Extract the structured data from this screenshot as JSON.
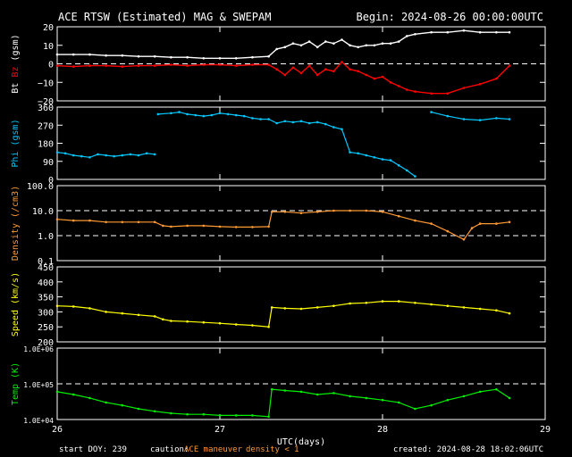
{
  "header": {
    "title": "ACE RTSW (Estimated) MAG & SWEPAM",
    "begin": "Begin: 2024-08-26 00:00:00UTC"
  },
  "footer": {
    "start_doy": "start DOY: 239",
    "caution_label": "caution:",
    "maneuver": "ACE maneuver",
    "density_note": "density < 1",
    "created": "created: 2024-08-28 18:02:06UTC"
  },
  "colors": {
    "bt": "#ffffff",
    "bz": "#ff0000",
    "phi": "#00c8ff",
    "density": "#ff9933",
    "speed": "#ffff00",
    "temp": "#00ee00",
    "axes": "#ffffff",
    "maneuver": "#ff9933"
  },
  "chart_data": [
    {
      "type": "line",
      "ylabel": "Bt  Bz  (gsm)",
      "ylabel_parts": [
        "Bt",
        "Bz",
        "(gsm)"
      ],
      "xlim": [
        "2024-08-26T00:00",
        "2024-08-29T00:00"
      ],
      "ylim": [
        -20,
        20
      ],
      "yticks": [
        20,
        10,
        0,
        -10,
        -20
      ],
      "ytick_labels": [
        "20",
        "10",
        "0",
        "−10",
        "−20"
      ],
      "dashed_y": [
        0
      ],
      "series": [
        {
          "name": "Bt",
          "color": "#ffffff",
          "x": [
            26.0,
            26.1,
            26.2,
            26.3,
            26.4,
            26.5,
            26.6,
            26.7,
            26.8,
            26.9,
            27.0,
            27.1,
            27.2,
            27.3,
            27.35,
            27.4,
            27.45,
            27.5,
            27.55,
            27.6,
            27.65,
            27.7,
            27.75,
            27.8,
            27.85,
            27.9,
            27.95,
            28.0,
            28.05,
            28.1,
            28.15,
            28.2,
            28.3,
            28.4,
            28.5,
            28.6,
            28.7,
            28.78
          ],
          "y": [
            5,
            5,
            5,
            4.5,
            4.5,
            4,
            4,
            3.5,
            3.5,
            3,
            3,
            3,
            3.5,
            4,
            8,
            9,
            11,
            10,
            12,
            9,
            12,
            11,
            13,
            10,
            9,
            10,
            10,
            11,
            11,
            12,
            15,
            16,
            17,
            17,
            18,
            17,
            17,
            17
          ]
        },
        {
          "name": "Bz",
          "color": "#ff0000",
          "x": [
            26.0,
            26.1,
            26.2,
            26.3,
            26.4,
            26.5,
            26.6,
            26.7,
            26.8,
            26.9,
            27.0,
            27.1,
            27.2,
            27.3,
            27.35,
            27.4,
            27.45,
            27.5,
            27.55,
            27.6,
            27.65,
            27.7,
            27.75,
            27.8,
            27.85,
            27.9,
            27.95,
            28.0,
            28.05,
            28.1,
            28.15,
            28.2,
            28.3,
            28.4,
            28.5,
            28.6,
            28.7,
            28.78
          ],
          "y": [
            -1,
            -1.5,
            -1,
            -1,
            -1.5,
            -1,
            -1,
            -0.5,
            -1,
            -0.5,
            -0.5,
            -1,
            -0.5,
            -0.5,
            -3,
            -6,
            -2,
            -5,
            -1,
            -6,
            -3,
            -4,
            1,
            -3,
            -4,
            -6,
            -8,
            -7,
            -10,
            -12,
            -14,
            -15,
            -16,
            -16,
            -13,
            -11,
            -8,
            -1
          ]
        }
      ]
    },
    {
      "type": "scatter",
      "ylabel": "Phi  (gsm)",
      "ylim": [
        0,
        360
      ],
      "yticks": [
        360,
        270,
        180,
        90,
        0
      ],
      "ytick_labels": [
        "360",
        "270",
        "180",
        "90",
        "0"
      ],
      "series": [
        {
          "name": "Phi",
          "color": "#00c8ff",
          "x": [
            26.0,
            26.05,
            26.1,
            26.15,
            26.2,
            26.25,
            26.3,
            26.35,
            26.4,
            26.45,
            26.5,
            26.55,
            26.6,
            26.62,
            26.7,
            26.75,
            26.8,
            26.85,
            26.9,
            26.95,
            27.0,
            27.05,
            27.1,
            27.15,
            27.2,
            27.25,
            27.3,
            27.35,
            27.4,
            27.45,
            27.5,
            27.55,
            27.6,
            27.65,
            27.7,
            27.75,
            27.8,
            27.85,
            27.9,
            27.95,
            28.0,
            28.05,
            28.1,
            28.15,
            28.2,
            28.3,
            28.4,
            28.5,
            28.6,
            28.7,
            28.78
          ],
          "y": [
            135,
            130,
            120,
            115,
            110,
            125,
            120,
            115,
            120,
            125,
            120,
            130,
            125,
            325,
            330,
            335,
            325,
            320,
            315,
            320,
            330,
            325,
            320,
            315,
            305,
            300,
            300,
            280,
            290,
            285,
            290,
            280,
            285,
            275,
            260,
            250,
            135,
            130,
            120,
            110,
            100,
            95,
            70,
            45,
            15,
            335,
            315,
            300,
            295,
            305,
            300
          ]
        }
      ]
    },
    {
      "type": "scatter",
      "ylabel": "Density  (/cm3)",
      "scale": "log",
      "ylim": [
        0.1,
        100
      ],
      "yticks": [
        100,
        10,
        1,
        0.1
      ],
      "ytick_labels": [
        "100.0",
        "10.0",
        "1.0",
        "0.1"
      ],
      "dashed_y": [
        10,
        1
      ],
      "series": [
        {
          "name": "Density",
          "color": "#ff9933",
          "x": [
            26.0,
            26.1,
            26.2,
            26.3,
            26.4,
            26.5,
            26.6,
            26.65,
            26.7,
            26.8,
            26.9,
            27.0,
            27.1,
            27.2,
            27.3,
            27.32,
            27.4,
            27.5,
            27.6,
            27.7,
            27.8,
            27.9,
            28.0,
            28.1,
            28.2,
            28.3,
            28.4,
            28.5,
            28.55,
            28.6,
            28.7,
            28.78
          ],
          "y": [
            4.5,
            4,
            4,
            3.5,
            3.5,
            3.5,
            3.5,
            2.5,
            2.3,
            2.5,
            2.5,
            2.3,
            2.2,
            2.2,
            2.3,
            9,
            9,
            8,
            9,
            10,
            10,
            10,
            9,
            6,
            4,
            3,
            1.5,
            0.7,
            2,
            3,
            3,
            3.5
          ]
        }
      ]
    },
    {
      "type": "scatter",
      "ylabel": "Speed  (km/s)",
      "ylim": [
        200,
        450
      ],
      "yticks": [
        450,
        400,
        350,
        300,
        250,
        200
      ],
      "ytick_labels": [
        "450",
        "400",
        "350",
        "300",
        "250",
        "200"
      ],
      "series": [
        {
          "name": "Speed",
          "color": "#ffff00",
          "x": [
            26.0,
            26.1,
            26.2,
            26.3,
            26.4,
            26.5,
            26.6,
            26.65,
            26.7,
            26.8,
            26.9,
            27.0,
            27.1,
            27.2,
            27.3,
            27.32,
            27.4,
            27.5,
            27.6,
            27.7,
            27.8,
            27.9,
            28.0,
            28.1,
            28.2,
            28.3,
            28.4,
            28.5,
            28.6,
            28.7,
            28.78
          ],
          "y": [
            320,
            318,
            312,
            300,
            295,
            290,
            285,
            275,
            270,
            268,
            265,
            262,
            258,
            255,
            250,
            315,
            312,
            310,
            315,
            320,
            328,
            330,
            335,
            335,
            330,
            325,
            320,
            315,
            310,
            305,
            295
          ]
        }
      ]
    },
    {
      "type": "scatter",
      "ylabel": "Temp  (K)",
      "scale": "log",
      "ylim": [
        10000,
        1000000
      ],
      "yticks": [
        1000000,
        100000,
        10000
      ],
      "ytick_labels": [
        "1.0E+06",
        "1.0E+05",
        "1.0E+04"
      ],
      "dashed_y": [
        100000
      ],
      "xlabel": "UTC(days)",
      "xtick_values": [
        26,
        27,
        28,
        29
      ],
      "xtick_labels": [
        "26",
        "27",
        "28",
        "29"
      ],
      "series": [
        {
          "name": "Temp",
          "color": "#00ee00",
          "x": [
            26.0,
            26.1,
            26.2,
            26.3,
            26.4,
            26.5,
            26.6,
            26.7,
            26.8,
            26.9,
            27.0,
            27.1,
            27.2,
            27.3,
            27.32,
            27.4,
            27.5,
            27.6,
            27.7,
            27.8,
            27.9,
            28.0,
            28.1,
            28.2,
            28.3,
            28.4,
            28.5,
            28.6,
            28.7,
            28.78
          ],
          "y": [
            60000,
            50000,
            40000,
            30000,
            25000,
            20000,
            17000,
            15000,
            14000,
            14000,
            13000,
            13000,
            13000,
            12000,
            70000,
            65000,
            60000,
            50000,
            55000,
            45000,
            40000,
            35000,
            30000,
            20000,
            25000,
            35000,
            45000,
            60000,
            70000,
            40000
          ]
        }
      ]
    }
  ]
}
